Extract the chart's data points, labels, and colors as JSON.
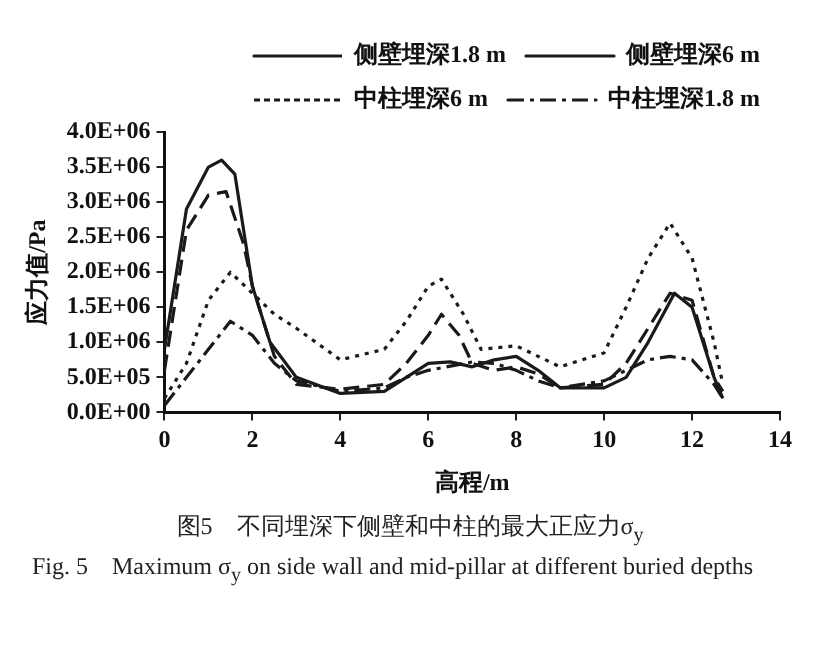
{
  "chart_data": {
    "type": "line",
    "xlabel": "高程/m",
    "ylabel": "应力值/Pa",
    "xlim": [
      0,
      14
    ],
    "xticks": [
      0,
      2,
      4,
      6,
      8,
      10,
      12,
      14
    ],
    "ylim": [
      0,
      4000000
    ],
    "yticks": [
      {
        "value": 0,
        "label": "0.0E+00"
      },
      {
        "value": 500000,
        "label": "5.0E+05"
      },
      {
        "value": 1000000,
        "label": "1.0E+06"
      },
      {
        "value": 1500000,
        "label": "1.5E+06"
      },
      {
        "value": 2000000,
        "label": "2.0E+06"
      },
      {
        "value": 2500000,
        "label": "2.5E+06"
      },
      {
        "value": 3000000,
        "label": "3.0E+06"
      },
      {
        "value": 3500000,
        "label": "3.5E+06"
      },
      {
        "value": 4000000,
        "label": "4.0E+06"
      }
    ],
    "grid": false,
    "legend": "top right",
    "marker": "none",
    "series": [
      {
        "name": "侧壁埋深1.8 m",
        "color": "#1a1a1a",
        "line_style": "dashed",
        "x": [
          0,
          0.5,
          1,
          1.4,
          1.8,
          2,
          2.5,
          3,
          4,
          5,
          5.5,
          6,
          6.3,
          6.7,
          7,
          7.5,
          8,
          8.5,
          9,
          10,
          10.5,
          11,
          11.5,
          12,
          12.5,
          12.7
        ],
        "values": [
          600000,
          2600000,
          3100000,
          3150000,
          2400000,
          1800000,
          800000,
          400000,
          330000,
          400000,
          700000,
          1100000,
          1400000,
          1100000,
          700000,
          600000,
          650000,
          550000,
          350000,
          400000,
          700000,
          1200000,
          1700000,
          1600000,
          500000,
          300000
        ]
      },
      {
        "name": "侧壁埋深6 m",
        "color": "#1a1a1a",
        "line_style": "solid",
        "x": [
          0,
          0.5,
          1,
          1.3,
          1.6,
          2,
          2.4,
          3,
          4,
          5,
          5.5,
          6,
          6.5,
          7,
          7.5,
          8,
          8.5,
          9,
          10,
          10.5,
          11,
          11.6,
          12,
          12.5,
          12.7
        ],
        "values": [
          900000,
          2900000,
          3500000,
          3600000,
          3400000,
          1800000,
          1000000,
          500000,
          270000,
          300000,
          500000,
          700000,
          720000,
          650000,
          750000,
          800000,
          600000,
          350000,
          350000,
          500000,
          1000000,
          1700000,
          1500000,
          500000,
          200000
        ]
      },
      {
        "name": "中柱埋深6 m",
        "color": "#1a1a1a",
        "line_style": "dotted",
        "x": [
          0,
          0.5,
          1,
          1.5,
          2,
          2.5,
          3,
          4,
          5,
          5.5,
          6,
          6.3,
          6.8,
          7.2,
          8,
          8.5,
          9,
          10,
          10.5,
          11,
          11.5,
          12,
          12.5,
          12.7
        ],
        "values": [
          200000,
          700000,
          1600000,
          2000000,
          1700000,
          1400000,
          1200000,
          750000,
          900000,
          1300000,
          1800000,
          1900000,
          1400000,
          900000,
          950000,
          800000,
          650000,
          850000,
          1500000,
          2200000,
          2700000,
          2200000,
          1000000,
          400000
        ]
      },
      {
        "name": "中柱埋深1.8 m",
        "color": "#1a1a1a",
        "line_style": "dashdot",
        "x": [
          0,
          0.5,
          1,
          1.5,
          2,
          2.5,
          3,
          4,
          5,
          5.5,
          6,
          7,
          7.5,
          8,
          8.5,
          9,
          10,
          11,
          11.5,
          12,
          12.5,
          12.7
        ],
        "values": [
          100000,
          500000,
          900000,
          1300000,
          1100000,
          700000,
          450000,
          300000,
          350000,
          500000,
          600000,
          720000,
          700000,
          600000,
          450000,
          350000,
          450000,
          750000,
          800000,
          750000,
          400000,
          200000
        ]
      }
    ],
    "annotations": [
      "图5　不同埋深下侧壁和中柱的最大正应力σ$_{y}$",
      "Fig. 5　Maximum σ$_{y}$ on side wall and mid-pillar at different buried depths"
    ]
  }
}
